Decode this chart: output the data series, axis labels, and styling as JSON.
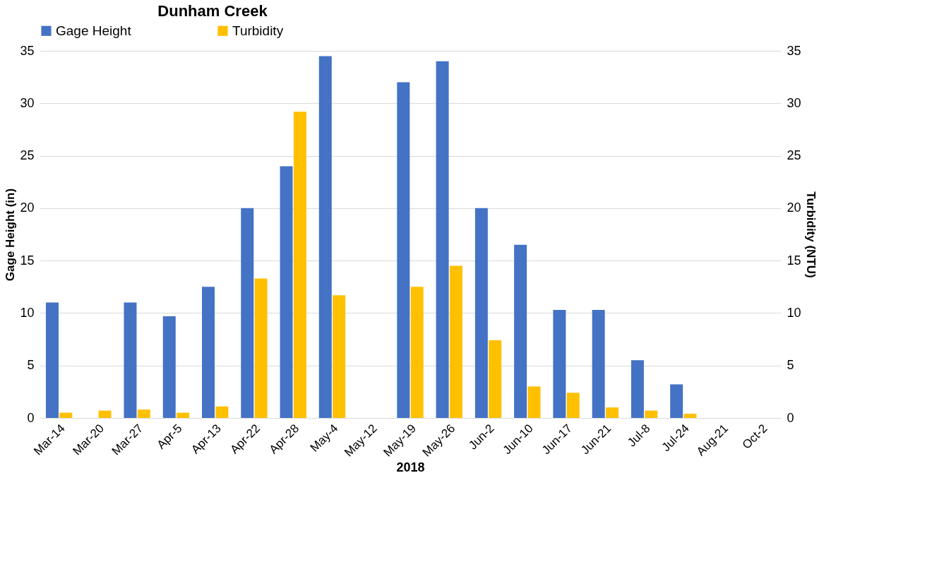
{
  "chart_data": {
    "type": "bar",
    "title": "Dunham Creek",
    "xlabel": "2018",
    "ylabel": "Gage Height (in)",
    "y2label": "Turbidity (NTU)",
    "categories": [
      "Mar-14",
      "Mar-20",
      "Mar-27",
      "Apr-5",
      "Apr-13",
      "Apr-22",
      "Apr-28",
      "May-4",
      "May-12",
      "May-19",
      "May-26",
      "Jun-2",
      "Jun-10",
      "Jun-17",
      "Jun-21",
      "Jul-8",
      "Jul-24",
      "Aug-21",
      "Oct-2"
    ],
    "series": [
      {
        "name": "Gage Height",
        "color": "#4472c4",
        "values": [
          11,
          null,
          11,
          9.7,
          12.5,
          20,
          24,
          34.5,
          null,
          32,
          34,
          20,
          16.5,
          10.3,
          10.3,
          5.5,
          3.2,
          null,
          null
        ]
      },
      {
        "name": "Turbidity",
        "color": "#ffc000",
        "axis": "y2",
        "values": [
          0.5,
          0.7,
          0.8,
          0.5,
          1.1,
          13.3,
          29.2,
          11.7,
          null,
          12.5,
          14.5,
          7.4,
          3.0,
          2.4,
          1.0,
          0.7,
          0.4,
          null,
          null
        ]
      }
    ],
    "ylim": [
      0,
      35
    ],
    "yticks": [
      0,
      5,
      10,
      15,
      20,
      25,
      30,
      35
    ],
    "y2lim": [
      0,
      35
    ],
    "y2ticks": [
      0,
      5,
      10,
      15,
      20,
      25,
      30,
      35
    ],
    "grid": "y",
    "legend": "top"
  }
}
